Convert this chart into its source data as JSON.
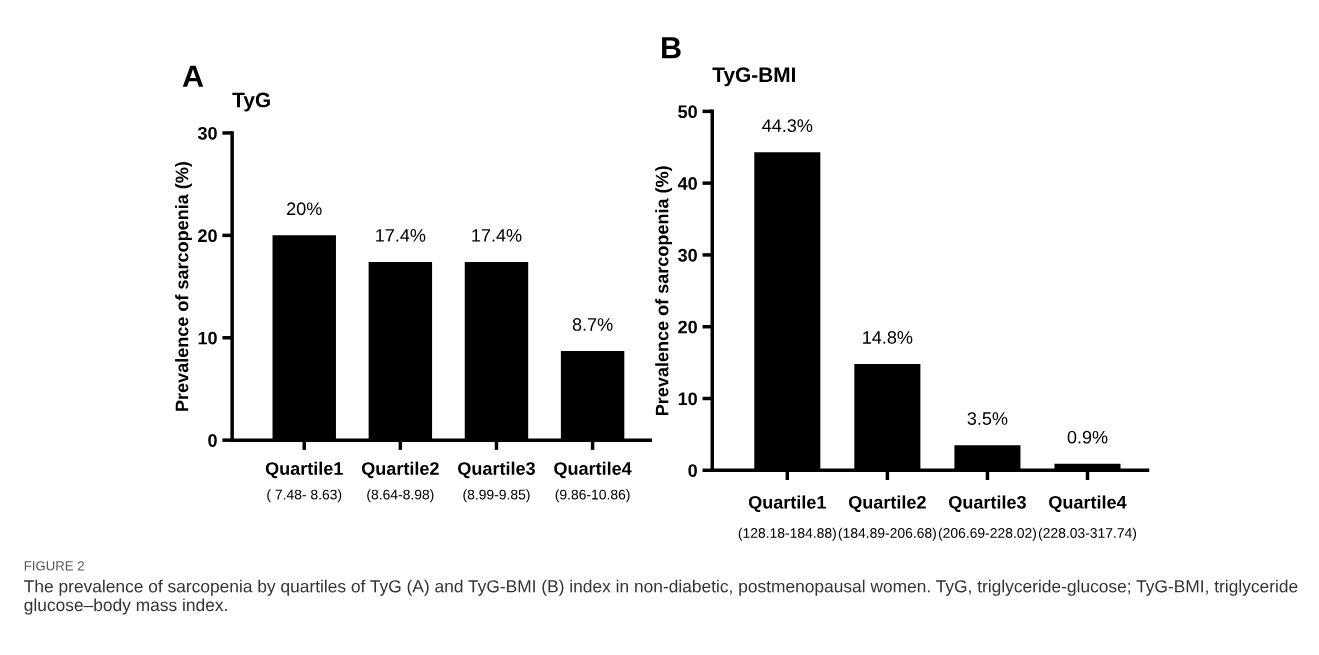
{
  "chart_data": [
    {
      "type": "bar",
      "title": "TyG",
      "ylabel": "Prevalence of sarcopenia (%)",
      "categories": [
        "Quartile1\n( 7.48- 8.63)",
        "Quartile2\n(8.64-8.98)",
        "Quartile3\n(8.99-9.85)",
        "Quartile4\n(9.86-10.86)"
      ],
      "values": [
        20,
        17.4,
        17.4,
        8.7
      ],
      "value_labels": [
        "20%",
        "17.4%",
        "17.4%",
        "8.7%"
      ],
      "color": "#000000",
      "ylim": [
        0,
        30
      ],
      "yticks": [
        0,
        10,
        20,
        30
      ],
      "grid": false,
      "legend": false,
      "annotations": [
        "A"
      ]
    },
    {
      "type": "bar",
      "title": "TyG-BMI",
      "ylabel": "Prevalence of sarcopenia (%)",
      "categories": [
        "Quartile1\n(128.18-184.88)",
        "Quartile2\n(184.89-206.68)",
        "Quartile3\n(206.69-228.02)",
        "Quartile4\n(228.03-317.74)"
      ],
      "values": [
        44.3,
        14.8,
        3.5,
        0.9
      ],
      "value_labels": [
        "44.3%",
        "14.8%",
        "3.5%",
        "0.9%"
      ],
      "color": "#000000",
      "ylim": [
        0,
        50
      ],
      "yticks": [
        0,
        10,
        20,
        30,
        40,
        50
      ],
      "grid": false,
      "legend": false,
      "annotations": [
        "B",
        "FIGURE 2",
        "The prevalence of sarcopenia by quartiles of TyG (A) and TyG-BMI (B) index in non-diabetic, postmenopausal women. TyG, triglyceride-glucose; TyG-BMI, triglyceride glucose–body mass index."
      ]
    }
  ]
}
